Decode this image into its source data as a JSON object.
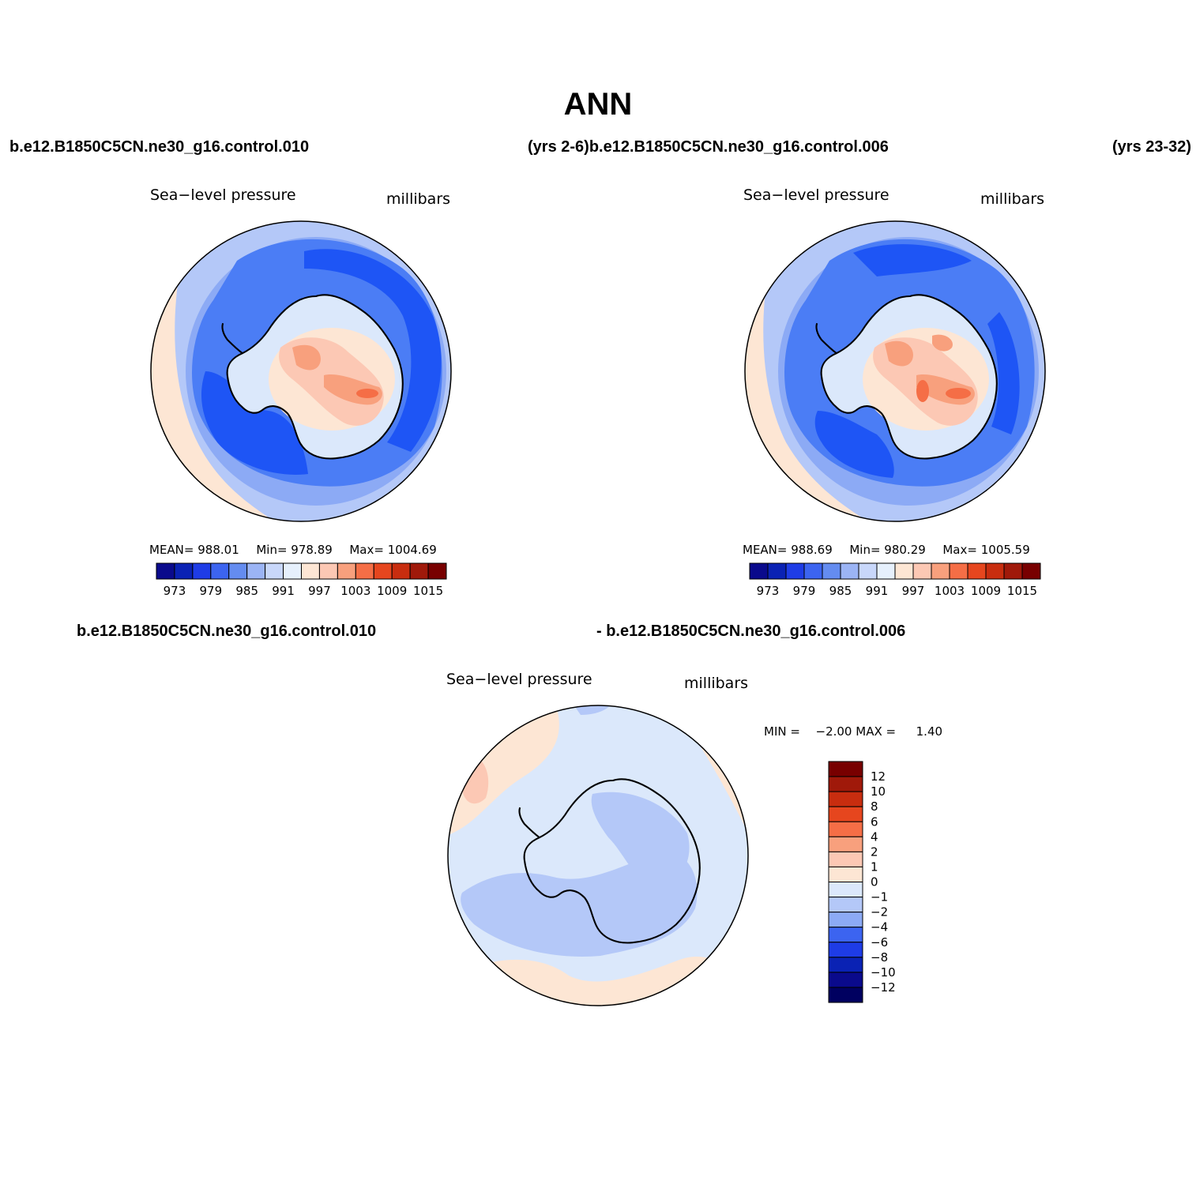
{
  "page": {
    "title": "ANN",
    "header_left": "b.e12.B1850C5CN.ne30_g16.control.010",
    "header_mid": "(yrs 2-6)b.e12.B1850C5CN.ne30_g16.control.006",
    "header_right": "(yrs 23-32)",
    "diff_header_left": "b.e12.B1850C5CN.ne30_g16.control.010",
    "diff_header_right": "- b.e12.B1850C5CN.ne30_g16.control.006"
  },
  "panels": [
    {
      "id": "test",
      "variable": "Sea−level pressure",
      "units": "millibars",
      "mean_label": "MEAN=",
      "mean": "988.01",
      "min_label": "Min=",
      "min": "978.89",
      "max_label": "Max=",
      "max": "1004.69"
    },
    {
      "id": "control",
      "variable": "Sea−level pressure",
      "units": "millibars",
      "mean_label": "MEAN=",
      "mean": "988.69",
      "min_label": "Min=",
      "min": "980.29",
      "max_label": "Max=",
      "max": "1005.59"
    },
    {
      "id": "difference",
      "variable": "Sea−level pressure",
      "units": "millibars",
      "min_label": "MIN =",
      "min": "−2.00",
      "max_label": "MAX =",
      "max": "1.40"
    }
  ],
  "abs_colorbar": {
    "colors": [
      "#0a0a8c",
      "#0a22b4",
      "#1e3ce6",
      "#3c64f0",
      "#648cf0",
      "#9bb4f5",
      "#c8d7fa",
      "#e6f0fc",
      "#fde6d4",
      "#fcc8b4",
      "#f8a07d",
      "#f56e46",
      "#e6461e",
      "#c82d0f",
      "#a0190a",
      "#780000"
    ],
    "tick_labels": [
      "973",
      "979",
      "985",
      "991",
      "997",
      "1003",
      "1009",
      "1015"
    ]
  },
  "diff_colorbar": {
    "colors": [
      "#780000",
      "#a0190a",
      "#c82d0f",
      "#e6461e",
      "#f56e46",
      "#f8a07d",
      "#fcc8b4",
      "#fde6d4",
      "#dbe8fb",
      "#b4c8f8",
      "#8caaf5",
      "#3c64f0",
      "#1e3ce6",
      "#0a22b4",
      "#0a0a8c",
      "#000060"
    ],
    "tick_labels": [
      "12",
      "10",
      "8",
      "6",
      "4",
      "2",
      "1",
      "0",
      "−1",
      "−2",
      "−4",
      "−6",
      "−8",
      "−10",
      "−12"
    ]
  },
  "map_colors": {
    "ocean_deep": "#1e55f5",
    "ocean_mid": "#4b7df5",
    "ocean_light": "#8caaf5",
    "ocean_pale": "#b4c8f8",
    "ocean_faint": "#dbe8fb",
    "land_pale": "#fde6d4",
    "land_peach": "#fcc8b4",
    "land_orange": "#f8a07d",
    "land_red": "#f56e46",
    "diff_light": "#dbe8fb",
    "diff_mid": "#b4c8f8",
    "diff_warm": "#fde6d4",
    "diff_peach": "#fcc8b4",
    "coast": "#000000"
  }
}
